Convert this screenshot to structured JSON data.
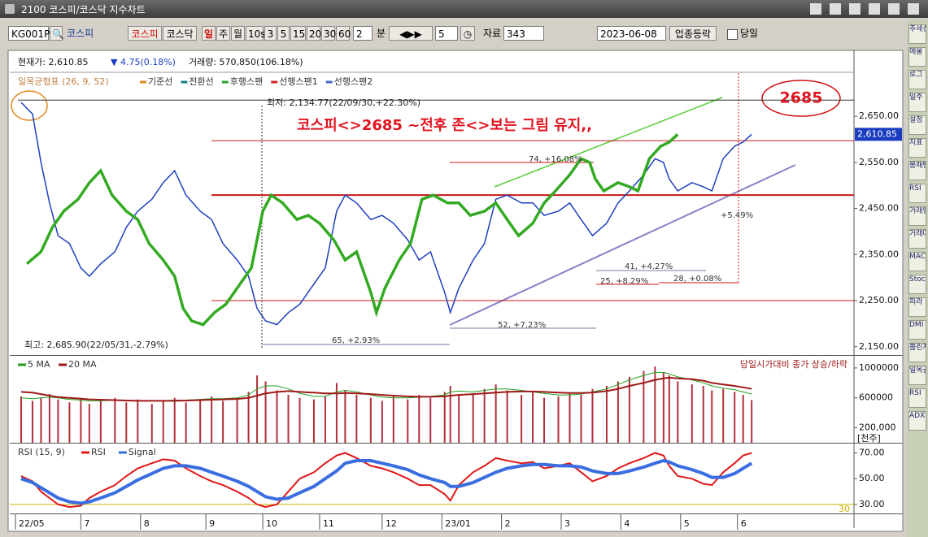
{
  "window": {
    "title": "2100 코스피/코스닥 지수차트"
  },
  "toolbar": {
    "code": "KG001P",
    "name": "코스피",
    "market_buttons": [
      "코스피",
      "코스닥"
    ],
    "period_buttons": [
      "일",
      "주",
      "월",
      "10s",
      "3",
      "5",
      "15",
      "20",
      "30",
      "60"
    ],
    "minute_value": "2",
    "minute_unit": "분",
    "step": "5",
    "data_label": "자료",
    "data_count": "343",
    "date": "2023-06-08",
    "sector_button": "업종등락",
    "today_label": "당일"
  },
  "info": {
    "price": "현재가: 2,610.85",
    "change": "▼ 4.75(0.18%)",
    "volume": "거래량: 570,850(106.18%)"
  },
  "side_panel": [
    "추세선",
    "매물",
    "로그",
    "일주",
    "설정",
    "지표",
    "봉패턴",
    "RSI",
    "거래량",
    "거래대금",
    "MACD",
    "Stoc",
    "피라",
    "DMI",
    "볼린저",
    "일목균형",
    "RSI",
    "ADX"
  ],
  "chart_data": [
    {
      "type": "line",
      "title": "일목균형표 (26, 9, 52)",
      "legend": [
        {
          "name": "기준선",
          "color": "#e08a1e"
        },
        {
          "name": "전환선",
          "color": "#16807a"
        },
        {
          "name": "후행스팬",
          "color": "#2ca02c"
        },
        {
          "name": "선행스팬1",
          "color": "#cc2222"
        },
        {
          "name": "선행스팬2",
          "color": "#4466cc"
        }
      ],
      "xlim": [
        -3,
        294
      ],
      "ylim": [
        2132,
        2786
      ],
      "yticks": [
        {
          "value": 2150,
          "label": "2,150.00"
        },
        {
          "value": 2250,
          "label": "2,250.00"
        },
        {
          "value": 2350,
          "label": "2,350.00"
        },
        {
          "value": 2450,
          "label": "2,450.00"
        },
        {
          "value": 2550,
          "label": "2,550.00"
        },
        {
          "value": 2650,
          "label": "2,650.00"
        }
      ],
      "last_price": {
        "value": 2610.85,
        "label": "2,610.85"
      },
      "hlines": [
        2685,
        2597,
        2479,
        2250
      ],
      "series": [
        {
          "color": "#1f3fbf",
          "x": [
            1,
            5,
            8,
            11,
            14,
            18,
            22,
            25,
            29,
            34,
            38,
            42,
            47,
            51,
            55,
            59,
            64,
            68,
            72,
            77,
            81,
            84,
            87,
            91,
            95,
            99,
            104,
            108,
            112,
            115,
            119,
            124,
            128,
            132,
            137,
            141,
            145,
            150,
            152,
            155,
            160,
            164,
            168,
            172,
            177,
            181,
            185,
            190,
            194,
            198,
            202,
            207,
            211,
            215,
            220,
            224,
            227,
            229,
            232,
            237,
            241,
            244,
            248,
            252,
            255,
            258
          ],
          "values": [
            2680,
            2655,
            2550,
            2462,
            2391,
            2374,
            2321,
            2303,
            2330,
            2356,
            2409,
            2444,
            2470,
            2506,
            2532,
            2479,
            2444,
            2426,
            2374,
            2338,
            2303,
            2233,
            2206,
            2198,
            2224,
            2242,
            2286,
            2321,
            2444,
            2479,
            2462,
            2426,
            2435,
            2418,
            2382,
            2338,
            2356,
            2268,
            2224,
            2277,
            2338,
            2374,
            2470,
            2479,
            2462,
            2462,
            2435,
            2444,
            2462,
            2426,
            2391,
            2418,
            2462,
            2488,
            2523,
            2558,
            2550,
            2514,
            2488,
            2506,
            2497,
            2488,
            2558,
            2585,
            2594,
            2611
          ]
        },
        {
          "color": "#33aa22",
          "x": [
            3,
            8,
            12,
            16,
            21,
            25,
            29,
            33,
            38,
            42,
            46,
            51,
            55,
            58,
            61,
            65,
            69,
            73,
            78,
            82,
            86,
            89,
            93,
            98,
            102,
            106,
            111,
            115,
            119,
            124,
            126,
            129,
            134,
            138,
            142,
            146,
            151,
            155,
            159,
            164,
            168,
            172,
            176,
            181,
            185,
            189,
            194,
            198,
            201,
            203,
            206,
            211,
            215,
            218,
            222,
            226,
            229,
            232
          ],
          "values": [
            2330,
            2356,
            2409,
            2444,
            2470,
            2506,
            2532,
            2479,
            2444,
            2426,
            2374,
            2338,
            2303,
            2233,
            2206,
            2198,
            2224,
            2242,
            2286,
            2321,
            2444,
            2479,
            2462,
            2426,
            2435,
            2418,
            2382,
            2338,
            2356,
            2268,
            2224,
            2277,
            2338,
            2374,
            2470,
            2479,
            2462,
            2462,
            2435,
            2444,
            2462,
            2426,
            2391,
            2418,
            2462,
            2488,
            2523,
            2558,
            2550,
            2514,
            2488,
            2506,
            2497,
            2488,
            2558,
            2585,
            2594,
            2611
          ]
        }
      ],
      "annotations": [
        {
          "text": "최저: 2,134.77(22/09/30,+22.30%)",
          "color": "#222222"
        },
        {
          "text": "코스피<>2685 ~전후 존<>보는 그림 유지,,",
          "color": "#e0141e"
        },
        {
          "text": "2685",
          "color": "#e0141e"
        },
        {
          "text": "최고: 2,685.90(22/05/31,-2.79%)",
          "color": "#222222"
        },
        {
          "text": "74, +16.08%",
          "color": "#333333"
        },
        {
          "text": "52, +7.23%",
          "color": "#333333"
        },
        {
          "text": "65, +2.93%",
          "color": "#333333"
        },
        {
          "text": "41, +4.27%",
          "color": "#333333"
        },
        {
          "text": "25, +8.29%",
          "color": "#333333"
        },
        {
          "text": "28, +0.08%",
          "color": "#333333"
        },
        {
          "text": "+5.49%",
          "color": "#333333"
        }
      ]
    },
    {
      "type": "bar",
      "color": "#b0303a",
      "xlim": [
        -3,
        294
      ],
      "ylim": [
        0,
        1140000
      ],
      "yticks": [
        {
          "value": 200000,
          "label": "200,000"
        },
        600000,
        1000000
      ],
      "yticks_note": "[천주]",
      "note": "당일시가대비 종가 상승/하락",
      "x": [
        1,
        5,
        8,
        11,
        14,
        18,
        22,
        25,
        29,
        34,
        38,
        42,
        47,
        51,
        55,
        59,
        64,
        68,
        72,
        77,
        81,
        84,
        87,
        91,
        95,
        99,
        104,
        108,
        112,
        115,
        119,
        124,
        128,
        132,
        137,
        141,
        145,
        150,
        152,
        155,
        160,
        164,
        168,
        172,
        177,
        181,
        185,
        190,
        194,
        198,
        202,
        207,
        211,
        215,
        220,
        224,
        227,
        229,
        232,
        237,
        241,
        244,
        248,
        252,
        255,
        258
      ],
      "values": [
        620000,
        560000,
        600000,
        650000,
        580000,
        540000,
        600000,
        520000,
        560000,
        600000,
        540000,
        580000,
        520000,
        560000,
        600000,
        540000,
        580000,
        620000,
        560000,
        600000,
        680000,
        900000,
        820000,
        700000,
        640000,
        600000,
        580000,
        620000,
        800000,
        700000,
        640000,
        600000,
        560000,
        620000,
        580000,
        640000,
        600000,
        680000,
        760000,
        640000,
        660000,
        720000,
        780000,
        700000,
        640000,
        680000,
        600000,
        620000,
        660000,
        640000,
        720000,
        760000,
        820000,
        880000,
        960000,
        1020000,
        940000,
        900000,
        820000,
        780000,
        760000,
        700000,
        720000,
        680000,
        640000,
        571000
      ],
      "series": [
        {
          "name": "5 MA",
          "color": "#22a022",
          "values": [
            600000,
            590000,
            600000,
            610000,
            600000,
            580000,
            570000,
            560000,
            560000,
            570000,
            570000,
            560000,
            560000,
            560000,
            570000,
            570000,
            580000,
            590000,
            590000,
            600000,
            640000,
            720000,
            760000,
            760000,
            720000,
            660000,
            620000,
            620000,
            680000,
            700000,
            680000,
            640000,
            610000,
            600000,
            600000,
            610000,
            620000,
            640000,
            680000,
            690000,
            680000,
            700000,
            720000,
            720000,
            700000,
            680000,
            660000,
            640000,
            640000,
            650000,
            680000,
            720000,
            780000,
            840000,
            900000,
            940000,
            940000,
            920000,
            880000,
            840000,
            800000,
            760000,
            730000,
            710000,
            680000,
            650000
          ]
        },
        {
          "name": "20 MA",
          "color": "#a01818",
          "values": [
            680000,
            670000,
            650000,
            630000,
            610000,
            600000,
            590000,
            580000,
            575000,
            570000,
            565000,
            560000,
            560000,
            560000,
            560000,
            565000,
            570000,
            575000,
            580000,
            585000,
            600000,
            630000,
            660000,
            680000,
            690000,
            680000,
            670000,
            660000,
            660000,
            665000,
            660000,
            650000,
            640000,
            630000,
            620000,
            615000,
            615000,
            620000,
            630000,
            640000,
            650000,
            660000,
            670000,
            680000,
            685000,
            685000,
            680000,
            670000,
            665000,
            665000,
            670000,
            690000,
            720000,
            760000,
            800000,
            840000,
            860000,
            870000,
            860000,
            850000,
            830000,
            800000,
            780000,
            760000,
            740000,
            720000
          ]
        }
      ]
    },
    {
      "type": "line",
      "title": "RSI (15, 9)",
      "xlim": [
        -3,
        294
      ],
      "ylim": [
        23,
        76
      ],
      "yticks": [
        {
          "value": 30,
          "label": "30.00"
        },
        {
          "value": 50,
          "label": "50.00"
        },
        {
          "value": 70,
          "label": "70.00"
        }
      ],
      "level": 30,
      "level_color": "#c8b400",
      "xticks": [
        {
          "value": -1,
          "label": "22/05"
        },
        {
          "value": 22,
          "label": "7"
        },
        {
          "value": 43,
          "label": "8"
        },
        {
          "value": 66,
          "label": "9"
        },
        {
          "value": 86,
          "label": "10"
        },
        {
          "value": 106,
          "label": "11"
        },
        {
          "value": 128,
          "label": "12"
        },
        {
          "value": 149,
          "label": "23/01"
        },
        {
          "value": 170,
          "label": "2"
        },
        {
          "value": 191,
          "label": "3"
        },
        {
          "value": 212,
          "label": "4"
        },
        {
          "value": 233,
          "label": "5"
        },
        {
          "value": 253,
          "label": "6"
        }
      ],
      "x": [
        1,
        5,
        8,
        11,
        14,
        18,
        22,
        25,
        29,
        34,
        38,
        42,
        47,
        51,
        55,
        59,
        64,
        68,
        72,
        77,
        81,
        84,
        87,
        91,
        95,
        99,
        104,
        108,
        112,
        115,
        119,
        124,
        128,
        132,
        137,
        141,
        145,
        150,
        152,
        155,
        160,
        164,
        168,
        172,
        177,
        181,
        185,
        190,
        194,
        198,
        202,
        207,
        211,
        215,
        220,
        224,
        227,
        229,
        232,
        237,
        241,
        244,
        248,
        252,
        255,
        258
      ],
      "series": [
        {
          "name": "RSI",
          "color": "#e01818",
          "values": [
            52,
            48,
            40,
            35,
            30,
            28,
            29,
            35,
            40,
            45,
            52,
            58,
            62,
            65,
            64,
            58,
            52,
            48,
            45,
            40,
            35,
            30,
            28,
            30,
            40,
            50,
            55,
            62,
            68,
            70,
            66,
            60,
            58,
            55,
            50,
            45,
            45,
            38,
            33,
            45,
            55,
            60,
            66,
            64,
            62,
            63,
            58,
            60,
            62,
            55,
            48,
            52,
            58,
            62,
            66,
            70,
            68,
            60,
            52,
            50,
            46,
            45,
            55,
            62,
            68,
            70
          ]
        },
        {
          "name": "Signal",
          "color": "#3a6ee0",
          "values": [
            50,
            47,
            43,
            39,
            35,
            32,
            31,
            32,
            35,
            39,
            44,
            49,
            54,
            58,
            60,
            60,
            58,
            55,
            52,
            48,
            44,
            40,
            36,
            34,
            35,
            39,
            44,
            50,
            56,
            62,
            64,
            64,
            62,
            60,
            57,
            53,
            50,
            47,
            44,
            44,
            47,
            51,
            55,
            58,
            60,
            61,
            61,
            60,
            60,
            59,
            56,
            54,
            54,
            56,
            59,
            62,
            64,
            63,
            60,
            57,
            54,
            51,
            51,
            54,
            58,
            62
          ]
        }
      ]
    }
  ]
}
